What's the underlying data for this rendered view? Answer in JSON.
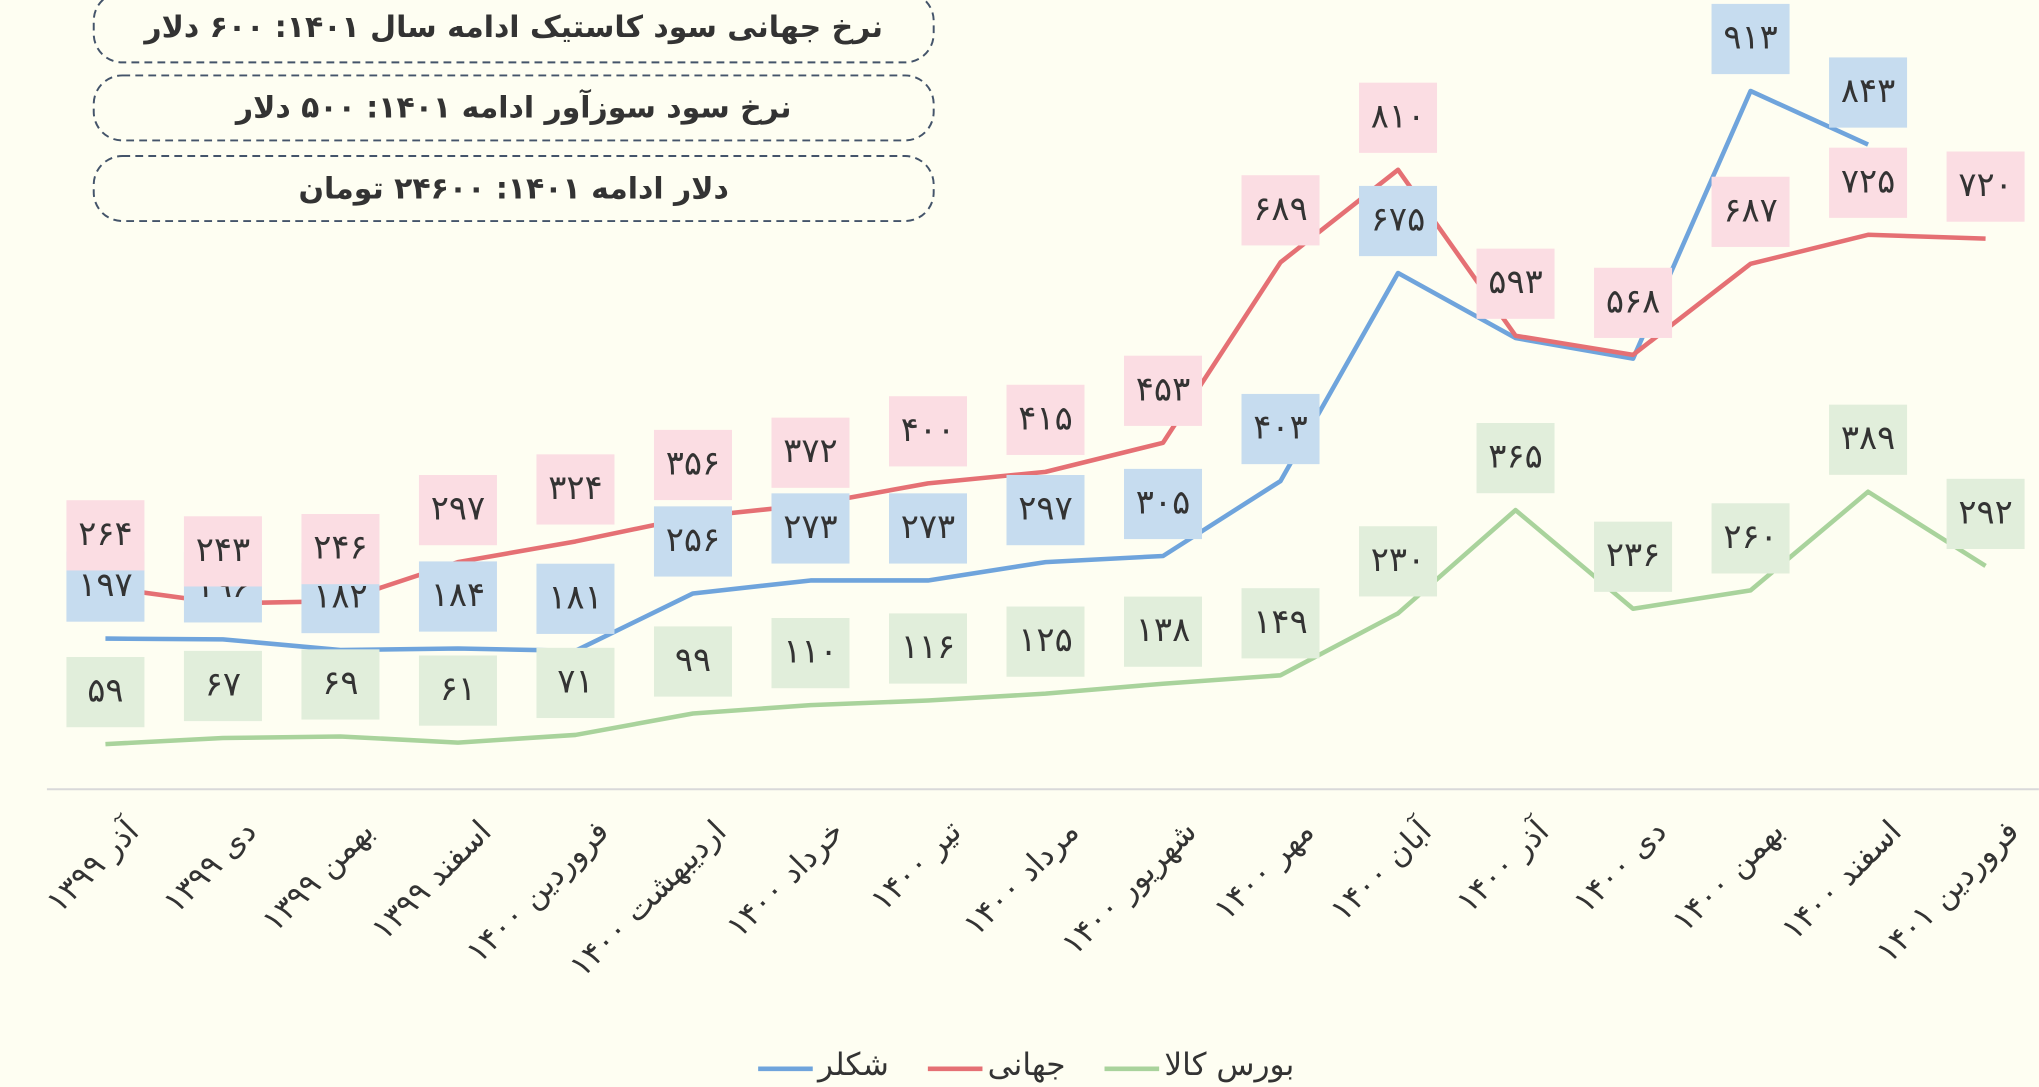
{
  "chart_data": {
    "type": "line",
    "annotations": [
      "نرخ جهانی سود کاستیک ادامه سال ۱۴۰۱: ۶۰۰ دلار",
      "نرخ سود سوزآور ادامه ۱۴۰۱: ۵۰۰ دلار",
      "دلار ادامه ۱۴۰۱: ۲۴۶۰۰ تومان"
    ],
    "categories": [
      "آذر ۱۳۹۹",
      "دی ۱۳۹۹",
      "بهمن ۱۳۹۹",
      "اسفند ۱۳۹۹",
      "فروردین ۱۴۰۰",
      "اردیبهشت ۱۴۰۰",
      "خرداد ۱۴۰۰",
      "تیر ۱۴۰۰",
      "مرداد ۱۴۰۰",
      "شهریور ۱۴۰۰",
      "مهر ۱۴۰۰",
      "آبان ۱۴۰۰",
      "آذر ۱۴۰۰",
      "دی ۱۴۰۰",
      "بهمن ۱۴۰۰",
      "اسفند ۱۴۰۰",
      "فروردین ۱۴۰۱"
    ],
    "series": [
      {
        "name": "شکلر",
        "color": "#6fa4dc",
        "label_color": "#c6dcef",
        "values": [
          197,
          196,
          182,
          184,
          181,
          256,
          273,
          273,
          297,
          305,
          403,
          675,
          590,
          563,
          913,
          843,
          null
        ],
        "value_labels": [
          "۱۹۷",
          "۱۹۶",
          "۱۸۲",
          "۱۸۴",
          "۱۸۱",
          "۲۵۶",
          "۲۷۳",
          "۲۷۳",
          "۲۹۷",
          "۳۰۵",
          "۴۰۳",
          "۶۷۵",
          null,
          null,
          "۹۱۳",
          "۸۴۳",
          null
        ]
      },
      {
        "name": "جهانی",
        "color": "#e57074",
        "label_color": "#fbdde3",
        "values": [
          264,
          243,
          246,
          297,
          324,
          356,
          372,
          400,
          415,
          453,
          689,
          810,
          593,
          568,
          687,
          725,
          720
        ],
        "value_labels": [
          "۲۶۴",
          "۲۴۳",
          "۲۴۶",
          "۲۹۷",
          "۳۲۴",
          "۳۵۶",
          "۳۷۲",
          "۴۰۰",
          "۴۱۵",
          "۴۵۳",
          "۶۸۹",
          "۸۱۰",
          "۵۹۳",
          "۵۶۸",
          "۶۸۷",
          "۷۲۵",
          "۷۲۰"
        ]
      },
      {
        "name": "بورس کالا",
        "color": "#a9d39c",
        "label_color": "#e1eedb",
        "values": [
          59,
          67,
          69,
          61,
          71,
          99,
          110,
          116,
          125,
          138,
          149,
          230,
          365,
          236,
          260,
          389,
          292
        ],
        "value_labels": [
          "۵۹",
          "۶۷",
          "۶۹",
          "۶۱",
          "۷۱",
          "۹۹",
          "۱۱۰",
          "۱۱۶",
          "۱۲۵",
          "۱۳۸",
          "۱۴۹",
          "۲۳۰",
          "۳۶۵",
          "۲۳۶",
          "۲۶۰",
          "۳۸۹",
          "۲۹۲"
        ]
      }
    ],
    "ylim": [
      0,
      1032
    ],
    "legend": "bottom"
  }
}
